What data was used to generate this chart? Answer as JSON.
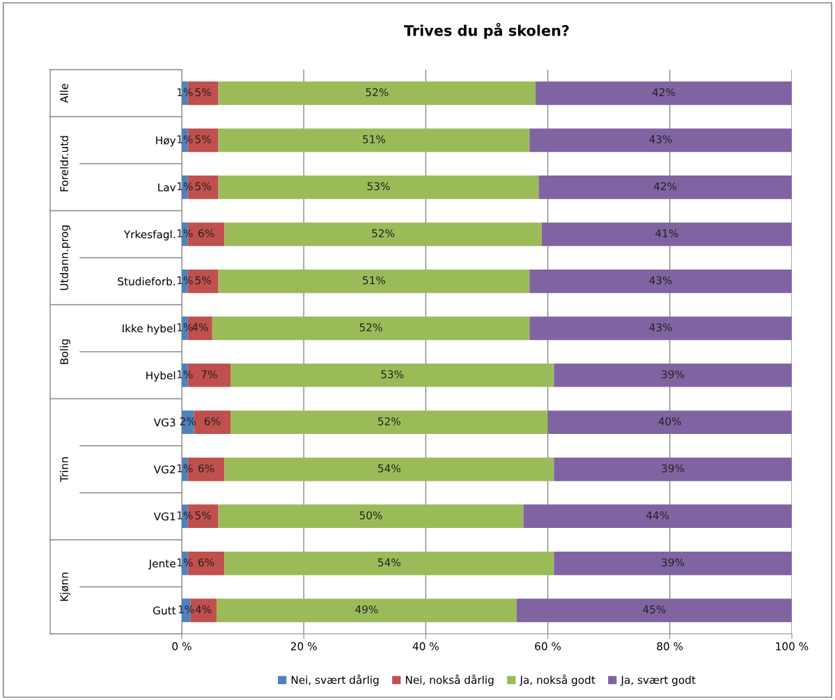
{
  "chart_data": {
    "type": "bar",
    "title": "Trives du på skolen?",
    "orientation": "horizontal",
    "stacked": true,
    "categories": [
      null,
      "Høy",
      "Lav",
      "Yrkesfagl.",
      "Studieforb.",
      "Ikke hybel",
      "Hybel",
      "VG3",
      "VG2",
      "VG1",
      "Jente",
      "Gutt"
    ],
    "series": [
      {
        "name": "Nei, svært dårlig",
        "color": "#4f81bd",
        "values": [
          1,
          1,
          1,
          1,
          1,
          1,
          1,
          2,
          1,
          1,
          1,
          1.4
        ],
        "value_labels": [
          "1%",
          "1%",
          "1%",
          "1%",
          "1%",
          "1%",
          "1%",
          "2%",
          "1%",
          "1%",
          "1%",
          "1%"
        ]
      },
      {
        "name": "Nei, nokså dårlig",
        "color": "#c0504d",
        "values": [
          5,
          5,
          5,
          6,
          5,
          4,
          7,
          6,
          6,
          5,
          6,
          4.3
        ],
        "value_labels": [
          "5%",
          "5%",
          "5%",
          "6%",
          "5%",
          "4%",
          "7%",
          "6%",
          "6%",
          "5%",
          "6%",
          "4%"
        ]
      },
      {
        "name": "Ja, nokså godt",
        "color": "#9bbb59",
        "values": [
          52,
          51,
          52.5,
          52,
          51,
          52,
          53,
          52,
          54,
          50,
          54,
          49.2
        ],
        "value_labels": [
          "52%",
          "51%",
          "53%",
          "52%",
          "51%",
          "52%",
          "53%",
          "52%",
          "54%",
          "50%",
          "54%",
          "49%"
        ]
      },
      {
        "name": "Ja, svært godt",
        "color": "#8064a2",
        "values": [
          42,
          43,
          41.5,
          41,
          43,
          43,
          39,
          40,
          39,
          44,
          39,
          45.1
        ],
        "value_labels": [
          "42%",
          "43%",
          "42%",
          "41%",
          "43%",
          "43%",
          "39%",
          "40%",
          "39%",
          "44%",
          "39%",
          "45%"
        ]
      }
    ],
    "annotations": [
      "Alle",
      "Foreldr.utd",
      "Utdann.prog",
      "Bolig",
      "Trinn",
      "Kjønn"
    ],
    "xlim": [
      0,
      100
    ],
    "xticks": [
      {
        "value": 0,
        "label": "0 %"
      },
      {
        "value": 20,
        "label": "20 %"
      },
      {
        "value": 40,
        "label": "40 %"
      },
      {
        "value": 60,
        "label": "60 %"
      },
      {
        "value": 80,
        "label": "80 %"
      },
      {
        "value": 100,
        "label": "100 %"
      }
    ],
    "grid": "x",
    "legend": "bottom"
  }
}
